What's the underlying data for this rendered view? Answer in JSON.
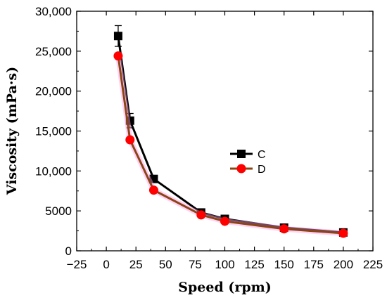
{
  "chart_data": {
    "type": "line",
    "xlabel": "Speed (rpm)",
    "ylabel": "Viscosity (mPa·s)",
    "xlim": [
      -25,
      225
    ],
    "ylim": [
      0,
      30000
    ],
    "xticks": [
      "−25",
      "0",
      "25",
      "50",
      "75",
      "100",
      "125",
      "150",
      "175",
      "200",
      "225"
    ],
    "yticks": [
      "0",
      "5000",
      "10,000",
      "15,000",
      "20,000",
      "25,000",
      "30,000"
    ],
    "legend_position": "right",
    "series": [
      {
        "name": "C",
        "color": "#000000",
        "marker": "square",
        "points": [
          {
            "x": 10,
            "y": 26900,
            "err": 1300
          },
          {
            "x": 20,
            "y": 16300,
            "err": 900
          },
          {
            "x": 40,
            "y": 9000,
            "err": 400
          },
          {
            "x": 80,
            "y": 4800,
            "err": 300
          },
          {
            "x": 100,
            "y": 4000,
            "err": 300
          },
          {
            "x": 150,
            "y": 2900,
            "err": 200
          },
          {
            "x": 200,
            "y": 2300,
            "err": 200
          }
        ]
      },
      {
        "name": "D",
        "color": "#ff0000",
        "line_color": "#8b4513",
        "marker": "circle",
        "points": [
          {
            "x": 10,
            "y": 24400,
            "err": 0
          },
          {
            "x": 20,
            "y": 13900,
            "err": 0
          },
          {
            "x": 40,
            "y": 7600,
            "err": 0
          },
          {
            "x": 80,
            "y": 4500,
            "err": 0
          },
          {
            "x": 100,
            "y": 3700,
            "err": 0
          },
          {
            "x": 150,
            "y": 2750,
            "err": 0
          },
          {
            "x": 200,
            "y": 2200,
            "err": 0
          }
        ]
      }
    ]
  }
}
